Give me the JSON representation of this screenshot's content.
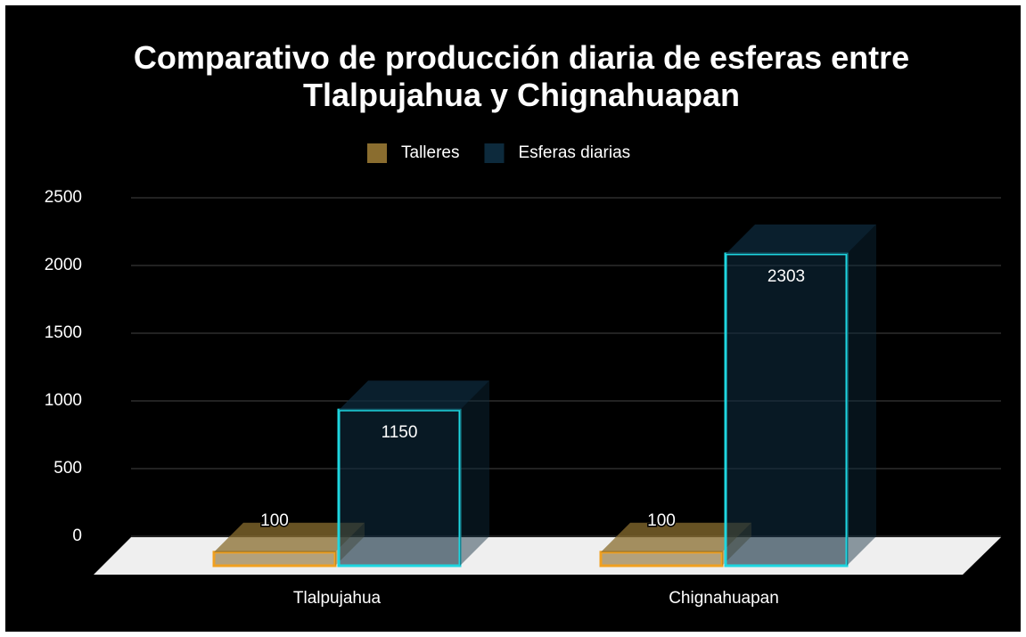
{
  "chart_data": {
    "type": "bar3d",
    "title": "Comparativo de producción diaria de esferas entre Tlalpujahua y Chignahuapan",
    "categories": [
      "Tlalpujahua",
      "Chignahuapan"
    ],
    "series": [
      {
        "name": "Talleres",
        "color": "#8a6d2f",
        "edge_color": "#f0a020",
        "values": [
          100,
          100
        ]
      },
      {
        "name": "Esferas diarias",
        "color": "#0d2a3c",
        "edge_color": "#1ed6e0",
        "values": [
          1150,
          2303
        ]
      }
    ],
    "ylim": [
      0,
      2500
    ],
    "yticks": [
      0,
      500,
      1000,
      1500,
      2000,
      2500
    ],
    "grid": true,
    "legend": "top"
  }
}
